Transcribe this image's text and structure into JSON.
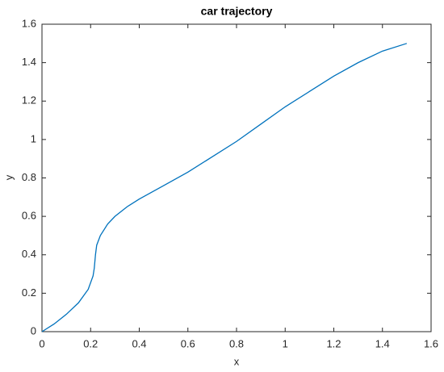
{
  "chart_data": {
    "type": "line",
    "title": "car trajectory",
    "x_label": "x",
    "y_label": "y",
    "x": [
      0,
      0.05,
      0.1,
      0.15,
      0.19,
      0.21,
      0.215,
      0.22,
      0.225,
      0.24,
      0.27,
      0.3,
      0.35,
      0.4,
      0.5,
      0.6,
      0.7,
      0.8,
      0.9,
      1.0,
      1.1,
      1.2,
      1.3,
      1.4,
      1.5
    ],
    "series": [
      {
        "color": "#0072bd",
        "values": [
          0,
          0.04,
          0.09,
          0.15,
          0.22,
          0.29,
          0.33,
          0.4,
          0.45,
          0.5,
          0.56,
          0.6,
          0.65,
          0.69,
          0.76,
          0.83,
          0.91,
          0.99,
          1.08,
          1.17,
          1.25,
          1.33,
          1.4,
          1.46,
          1.5
        ]
      }
    ],
    "xlim": [
      0,
      1.6
    ],
    "ylim": [
      0,
      1.6
    ],
    "xticks": [
      0,
      0.2,
      0.4,
      0.6,
      0.8,
      1,
      1.2,
      1.4,
      1.6
    ],
    "yticks": [
      0,
      0.2,
      0.4,
      0.6,
      0.8,
      1,
      1.2,
      1.4,
      1.6
    ],
    "grid": false
  }
}
